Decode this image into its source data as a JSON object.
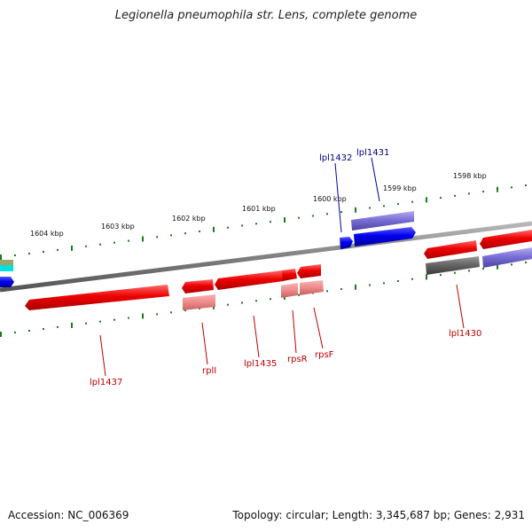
{
  "title": "Legionella pneumophila str. Lens, complete genome",
  "footer": {
    "accession": "Accession: NC_006369",
    "summary": "Topology: circular; Length: 3,345,687 bp; Genes: 2,931"
  },
  "colors": {
    "gene_red": "#e60000",
    "gene_pink": "#ef8a8a",
    "gene_blue": "#0000e6",
    "gene_purple": "#7b6fd8",
    "gene_gray": "#666666",
    "backbone": "#808080",
    "ticks": "#1b7a1b",
    "label_blue": "#00008b",
    "label_red": "#c00000"
  },
  "kbp_labels": [
    "1604 kbp",
    "1603 kbp",
    "1602 kbp",
    "1601 kbp",
    "1600 kbp",
    "1599 kbp",
    "1598 kbp"
  ],
  "gene_labels": {
    "lpl1432": "lpl1432",
    "lpl1431": "lpl1431",
    "lpl1437": "lpl1437",
    "rplI": "rplI",
    "lpl1435": "lpl1435",
    "rpsR": "rpsR",
    "rpsF": "rpsF",
    "lpl1430": "lpl1430"
  }
}
